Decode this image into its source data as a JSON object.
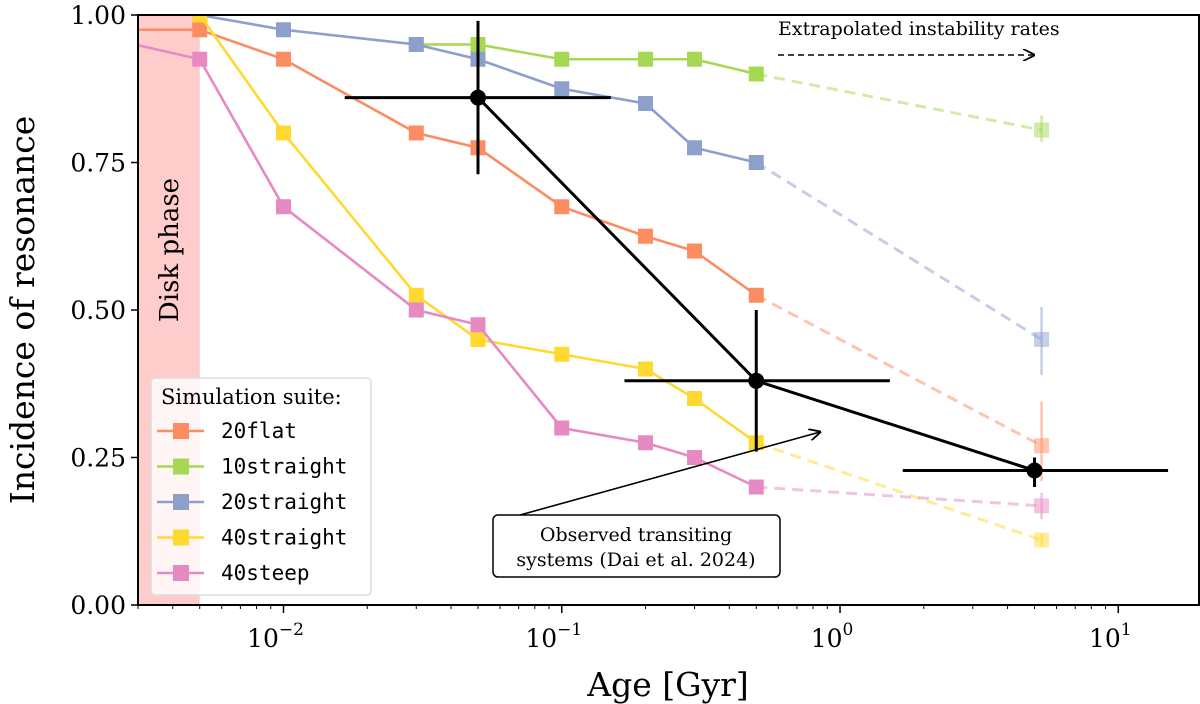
{
  "chart_data": {
    "type": "line",
    "xlabel": "Age [Gyr]",
    "ylabel": "Incidence of resonance",
    "xscale": "log",
    "xlim": [
      0.003,
      19.5
    ],
    "ylim": [
      0,
      1
    ],
    "grid": false,
    "x_ticks": [
      {
        "value": 0.01,
        "base": "10",
        "exp": "−2"
      },
      {
        "value": 0.1,
        "base": "10",
        "exp": "−1"
      },
      {
        "value": 1,
        "base": "10",
        "exp": "0"
      },
      {
        "value": 10,
        "base": "10",
        "exp": "1"
      }
    ],
    "y_ticks": [
      {
        "value": 0,
        "label": "0.00"
      },
      {
        "value": 0.25,
        "label": "0.25"
      },
      {
        "value": 0.5,
        "label": "0.50"
      },
      {
        "value": 0.75,
        "label": "0.75"
      },
      {
        "value": 1,
        "label": "1.00"
      }
    ],
    "shaded_region": {
      "label": "Disk phase",
      "x_range": [
        0.003,
        0.005
      ],
      "color": "#ffcccc",
      "label_color": "#ff0000"
    },
    "legend": {
      "title": "Simulation suite:",
      "placement": "lower-left"
    },
    "series": [
      {
        "name": "20flat",
        "color": "#fc8d62",
        "x": [
          0.001,
          0.005,
          0.01,
          0.03,
          0.05,
          0.1,
          0.2,
          0.3,
          0.5
        ],
        "y": [
          0.975,
          0.975,
          0.925,
          0.8,
          0.775,
          0.675,
          0.625,
          0.6,
          0.525
        ],
        "extrapolated": {
          "x": 5.3,
          "y": 0.27,
          "yerr": [
            0.21,
            0.345
          ]
        }
      },
      {
        "name": "10straight",
        "color": "#a6d854",
        "x": [
          0.03,
          0.05,
          0.1,
          0.2,
          0.3,
          0.5
        ],
        "y": [
          0.95,
          0.95,
          0.925,
          0.925,
          0.925,
          0.9
        ],
        "extrapolated": {
          "x": 5.3,
          "y": 0.805,
          "yerr": [
            0.785,
            0.83
          ]
        }
      },
      {
        "name": "20straight",
        "color": "#8da0cb",
        "x": [
          0.005,
          0.01,
          0.03,
          0.05,
          0.1,
          0.2,
          0.3,
          0.5
        ],
        "y": [
          1.0,
          0.975,
          0.95,
          0.925,
          0.875,
          0.85,
          0.775,
          0.75
        ],
        "extrapolated": {
          "x": 5.3,
          "y": 0.45,
          "yerr": [
            0.39,
            0.505
          ]
        }
      },
      {
        "name": "40straight",
        "color": "#ffd92f",
        "x": [
          0.005,
          0.01,
          0.03,
          0.05,
          0.1,
          0.2,
          0.3,
          0.5
        ],
        "y": [
          1.0,
          0.8,
          0.525,
          0.45,
          0.425,
          0.4,
          0.35,
          0.275
        ],
        "extrapolated": {
          "x": 5.3,
          "y": 0.11,
          "yerr": [
            0.1,
            0.12
          ]
        }
      },
      {
        "name": "40steep",
        "color": "#e78ac3",
        "x": [
          0.001,
          0.005,
          0.01,
          0.03,
          0.05,
          0.1,
          0.2,
          0.3,
          0.5
        ],
        "y": [
          1.0,
          0.925,
          0.675,
          0.5,
          0.475,
          0.3,
          0.275,
          0.25,
          0.2
        ],
        "extrapolated": {
          "x": 5.3,
          "y": 0.168,
          "yerr": [
            0.145,
            0.19
          ]
        }
      }
    ],
    "observed": {
      "color": "#000000",
      "points": [
        {
          "x": 0.05,
          "y": 0.86,
          "xerr": [
            0.0166,
            0.15
          ],
          "yerr": [
            0.73,
            0.99
          ]
        },
        {
          "x": 0.5,
          "y": 0.38,
          "xerr": [
            0.168,
            1.51
          ],
          "yerr": [
            0.26,
            0.5
          ]
        },
        {
          "x": 5.0,
          "y": 0.228,
          "xerr": [
            1.68,
            15.1
          ],
          "yerr": [
            0.2,
            0.25
          ]
        }
      ]
    },
    "annotations": {
      "observed_label_line1": "Observed transiting",
      "observed_label_line2": "systems (Dai et al. 2024)",
      "extrapolated_label": "Extrapolated instability rates"
    }
  }
}
